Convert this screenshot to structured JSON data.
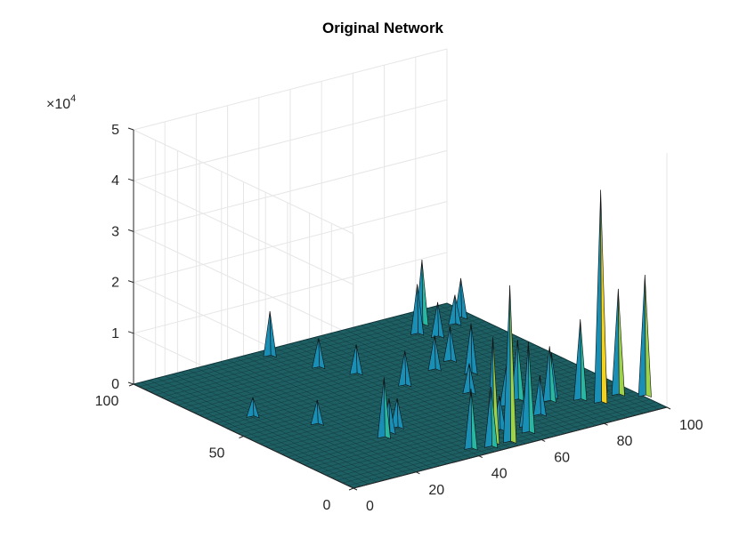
{
  "chart_data": {
    "type": "surface3d",
    "title": "Original Network",
    "exponent_label": {
      "base": "×10",
      "power": "4"
    },
    "x_axis": {
      "range": [
        0,
        100
      ],
      "ticks": [
        0,
        20,
        40,
        60,
        80,
        100
      ]
    },
    "y_axis": {
      "range": [
        0,
        100
      ],
      "ticks": [
        0,
        50,
        100
      ]
    },
    "z_axis": {
      "range": [
        0,
        50000
      ],
      "tick_labels": [
        "0",
        "1",
        "2",
        "3",
        "4",
        "5"
      ],
      "multiplier": 10000
    },
    "grid": true,
    "colormap": [
      "#1f2f7a",
      "#1a8fb5",
      "#27b8a3",
      "#9ed24a",
      "#f2d21f"
    ],
    "baseline_color": "#1e5f63",
    "peaks": [
      {
        "x": 100,
        "y": 10,
        "z": 24000
      },
      {
        "x": 95,
        "y": 15,
        "z": 21000
      },
      {
        "x": 88,
        "y": 13,
        "z": 42000
      },
      {
        "x": 93,
        "y": 20,
        "z": 18000
      },
      {
        "x": 85,
        "y": 18,
        "z": 16000
      },
      {
        "x": 78,
        "y": 22,
        "z": 11000
      },
      {
        "x": 72,
        "y": 28,
        "z": 12000
      },
      {
        "x": 80,
        "y": 24,
        "z": 9000
      },
      {
        "x": 67,
        "y": 26,
        "z": 8000
      },
      {
        "x": 48,
        "y": 5,
        "z": 21000
      },
      {
        "x": 52,
        "y": 3,
        "z": 31000
      },
      {
        "x": 41,
        "y": 5,
        "z": 12000
      },
      {
        "x": 60,
        "y": 6,
        "z": 18000
      },
      {
        "x": 46,
        "y": 3,
        "z": 12000
      },
      {
        "x": 28,
        "y": 26,
        "z": 12000
      },
      {
        "x": 31,
        "y": 28,
        "z": 7000
      },
      {
        "x": 74,
        "y": 52,
        "z": 10000
      },
      {
        "x": 75,
        "y": 63,
        "z": 7000
      },
      {
        "x": 68,
        "y": 60,
        "z": 7000
      },
      {
        "x": 85,
        "y": 90,
        "z": 13000
      },
      {
        "x": 80,
        "y": 85,
        "z": 10000
      },
      {
        "x": 92,
        "y": 85,
        "z": 6000
      },
      {
        "x": 83,
        "y": 80,
        "z": 7000
      },
      {
        "x": 55,
        "y": 55,
        "z": 7000
      },
      {
        "x": 50,
        "y": 70,
        "z": 6000
      },
      {
        "x": 40,
        "y": 95,
        "z": 9000
      },
      {
        "x": 45,
        "y": 80,
        "z": 6000
      },
      {
        "x": 96,
        "y": 88,
        "z": 8000
      },
      {
        "x": 70,
        "y": 15,
        "z": 8000
      },
      {
        "x": 62,
        "y": 10,
        "z": 9000
      },
      {
        "x": 55,
        "y": 12,
        "z": 7000
      },
      {
        "x": 35,
        "y": 30,
        "z": 6000
      },
      {
        "x": 65,
        "y": 40,
        "z": 6000
      },
      {
        "x": 20,
        "y": 45,
        "z": 5000
      },
      {
        "x": 10,
        "y": 60,
        "z": 4000
      }
    ]
  }
}
